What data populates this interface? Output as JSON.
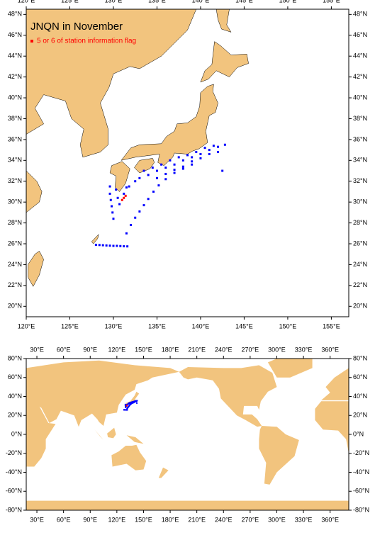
{
  "chart_data": [
    {
      "type": "scatter",
      "title": "JNQN in November",
      "land_color": "#f2c47e",
      "xlim": [
        120,
        157
      ],
      "ylim": [
        19,
        48.5
      ],
      "xticks": [
        {
          "value": 120,
          "label": "120°E"
        },
        {
          "value": 125,
          "label": "125°E"
        },
        {
          "value": 130,
          "label": "130°E"
        },
        {
          "value": 135,
          "label": "135°E"
        },
        {
          "value": 140,
          "label": "140°E"
        },
        {
          "value": 145,
          "label": "145°E"
        },
        {
          "value": 150,
          "label": "150°E"
        },
        {
          "value": 155,
          "label": "155°E"
        }
      ],
      "yticks": [
        {
          "value": 20,
          "label": "20°N"
        },
        {
          "value": 22,
          "label": "22°N"
        },
        {
          "value": 24,
          "label": "24°N"
        },
        {
          "value": 26,
          "label": "26°N"
        },
        {
          "value": 28,
          "label": "28°N"
        },
        {
          "value": 30,
          "label": "30°N"
        },
        {
          "value": 32,
          "label": "32°N"
        },
        {
          "value": 34,
          "label": "34°N"
        },
        {
          "value": 36,
          "label": "36°N"
        },
        {
          "value": 38,
          "label": "38°N"
        },
        {
          "value": 40,
          "label": "40°N"
        },
        {
          "value": 42,
          "label": "42°N"
        },
        {
          "value": 44,
          "label": "44°N"
        },
        {
          "value": 46,
          "label": "46°N"
        },
        {
          "value": 48,
          "label": "48°N"
        }
      ],
      "series": [
        {
          "color": "#0000ff",
          "x": [
            128.0,
            128.4,
            128.8,
            129.2,
            129.6,
            130.0,
            130.4,
            130.8,
            131.2,
            131.6,
            129.6,
            129.6,
            129.7,
            129.8,
            129.9,
            130.0,
            130.3,
            130.5,
            130.7,
            131.2,
            131.5,
            131.5,
            132.0,
            132.5,
            133.0,
            133.5,
            134.0,
            134.6,
            135.2,
            136.0,
            137.0,
            138.0,
            139.0,
            131.8,
            132.5,
            133.0,
            134.0,
            135.0,
            136.0,
            137.0,
            138.0,
            139.0,
            140.0,
            141.0,
            142.0,
            142.8,
            133.5,
            134.5,
            135.5,
            136.5,
            137.5,
            138.5,
            139.5,
            140.5,
            141.5,
            135.0,
            136.0,
            137.0,
            138.0,
            139.0,
            140.0,
            141.0,
            142.0,
            142.5
          ],
          "y": [
            25.9,
            25.88,
            25.86,
            25.84,
            25.82,
            25.8,
            25.8,
            25.78,
            25.76,
            25.75,
            31.5,
            30.8,
            30.2,
            29.6,
            29.0,
            28.4,
            31.2,
            30.4,
            29.8,
            30.8,
            31.4,
            27.0,
            27.8,
            28.5,
            29.1,
            29.7,
            30.3,
            31.0,
            31.6,
            32.2,
            32.8,
            33.2,
            33.6,
            31.5,
            32.0,
            32.3,
            32.6,
            33.0,
            33.3,
            33.6,
            34.0,
            34.3,
            34.6,
            35.0,
            35.3,
            35.5,
            33.0,
            33.3,
            33.6,
            34.0,
            34.3,
            34.5,
            34.8,
            35.2,
            35.4,
            32.3,
            32.7,
            33.1,
            33.4,
            33.9,
            34.2,
            34.6,
            34.8,
            33.0
          ]
        },
        {
          "name": "5 or 6 of station information flag",
          "color": "#ff0000",
          "x": [
            131.0,
            131.2,
            131.4
          ],
          "y": [
            30.2,
            30.4,
            30.6
          ]
        }
      ]
    },
    {
      "type": "scatter",
      "land_color": "#f2c47e",
      "xlim": [
        18,
        381
      ],
      "ylim": [
        -80,
        80
      ],
      "xticks": [
        {
          "value": 30,
          "label": "30°E"
        },
        {
          "value": 60,
          "label": "60°E"
        },
        {
          "value": 90,
          "label": "90°E"
        },
        {
          "value": 120,
          "label": "120°E"
        },
        {
          "value": 150,
          "label": "150°E"
        },
        {
          "value": 180,
          "label": "180°E"
        },
        {
          "value": 210,
          "label": "210°E"
        },
        {
          "value": 240,
          "label": "240°E"
        },
        {
          "value": 270,
          "label": "270°E"
        },
        {
          "value": 300,
          "label": "300°E"
        },
        {
          "value": 330,
          "label": "330°E"
        },
        {
          "value": 360,
          "label": "360°E"
        }
      ],
      "yticks": [
        {
          "value": 80,
          "label": "80°N"
        },
        {
          "value": 60,
          "label": "60°N"
        },
        {
          "value": 40,
          "label": "40°N"
        },
        {
          "value": 20,
          "label": "20°N"
        },
        {
          "value": 0,
          "label": "0°N"
        },
        {
          "value": -20,
          "label": "-20°N"
        },
        {
          "value": -40,
          "label": "-40°N"
        },
        {
          "value": -60,
          "label": "-60°N"
        },
        {
          "value": -80,
          "label": "-80°N"
        }
      ]
    }
  ]
}
